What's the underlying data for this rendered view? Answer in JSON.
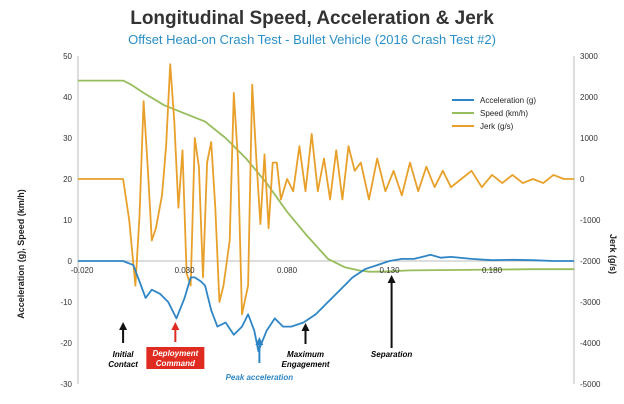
{
  "chart_data": {
    "type": "line",
    "title": "Longitudinal Speed, Acceleration & Jerk",
    "subtitle": "Offset Head-on Crash Test - Bullet Vehicle (2016 Crash Test #2)",
    "xlabel": "",
    "ylabel_left": "Acceleration (g), Speed (km/h)",
    "ylabel_right": "Jerk (g/s)",
    "xlim": [
      -0.022,
      0.22
    ],
    "ylim_left": [
      -30,
      50
    ],
    "ylim_right": [
      -5000,
      3000
    ],
    "x_ticks": [
      "-0.020",
      "0.030",
      "0.080",
      "0.130",
      "0.180"
    ],
    "y_ticks_left": [
      "50",
      "40",
      "30",
      "20",
      "10",
      "0",
      "-10",
      "-20",
      "-30"
    ],
    "y_ticks_right": [
      "3000",
      "2000",
      "1000",
      "0",
      "-1000",
      "-2000",
      "-3000",
      "-4000",
      "-5000"
    ],
    "legend_position": "top-right",
    "colors": {
      "acceleration": "#2f86c6",
      "speed": "#97bd5c",
      "jerk": "#e8a02a"
    },
    "series": [
      {
        "name": "Acceleration (g)",
        "axis": "left",
        "x": [
          -0.022,
          0.0,
          0.005,
          0.008,
          0.011,
          0.014,
          0.018,
          0.022,
          0.026,
          0.03,
          0.033,
          0.035,
          0.038,
          0.04,
          0.043,
          0.046,
          0.05,
          0.054,
          0.058,
          0.061,
          0.064,
          0.066,
          0.07,
          0.074,
          0.078,
          0.082,
          0.088,
          0.094,
          0.1,
          0.106,
          0.112,
          0.118,
          0.124,
          0.13,
          0.136,
          0.142,
          0.146,
          0.15,
          0.155,
          0.16,
          0.17,
          0.18,
          0.19,
          0.2,
          0.21,
          0.22
        ],
        "values": [
          0,
          0,
          -1,
          -5,
          -9,
          -7,
          -8,
          -10,
          -14,
          -9,
          -4,
          -4,
          -5,
          -6,
          -12,
          -16,
          -15,
          -18,
          -16,
          -13,
          -17,
          -22,
          -17,
          -14,
          -16,
          -16,
          -15,
          -13,
          -10,
          -7,
          -4,
          -2,
          -1,
          0,
          0.5,
          0.5,
          1,
          1.5,
          0.8,
          1,
          0.5,
          0.2,
          0.3,
          0.2,
          0,
          0
        ]
      },
      {
        "name": "Speed (km/h)",
        "axis": "left",
        "x": [
          -0.022,
          0.0,
          0.004,
          0.01,
          0.02,
          0.03,
          0.04,
          0.05,
          0.06,
          0.07,
          0.08,
          0.09,
          0.1,
          0.108,
          0.115,
          0.12,
          0.126,
          0.13,
          0.14,
          0.16,
          0.18,
          0.2,
          0.22
        ],
        "values": [
          44,
          44,
          43,
          41,
          38,
          36,
          34,
          30,
          25,
          19,
          12,
          6,
          0.5,
          -1.5,
          -2.3,
          -2.6,
          -2.6,
          -2.5,
          -2.3,
          -2.2,
          -2.1,
          -2.0,
          -2.0
        ]
      },
      {
        "name": "Jerk (g/s)",
        "axis": "right",
        "x": [
          -0.022,
          -0.01,
          0.0,
          0.003,
          0.006,
          0.008,
          0.01,
          0.012,
          0.014,
          0.016,
          0.019,
          0.021,
          0.023,
          0.025,
          0.027,
          0.029,
          0.031,
          0.033,
          0.035,
          0.037,
          0.039,
          0.041,
          0.043,
          0.045,
          0.047,
          0.049,
          0.052,
          0.054,
          0.056,
          0.058,
          0.061,
          0.063,
          0.065,
          0.067,
          0.069,
          0.071,
          0.073,
          0.075,
          0.077,
          0.08,
          0.083,
          0.086,
          0.089,
          0.092,
          0.095,
          0.098,
          0.101,
          0.104,
          0.107,
          0.11,
          0.113,
          0.116,
          0.12,
          0.124,
          0.128,
          0.132,
          0.136,
          0.14,
          0.144,
          0.148,
          0.152,
          0.156,
          0.16,
          0.165,
          0.17,
          0.175,
          0.18,
          0.185,
          0.19,
          0.195,
          0.2,
          0.205,
          0.21,
          0.215,
          0.22
        ],
        "values": [
          0,
          0,
          0,
          -1000,
          -2600,
          -900,
          1900,
          300,
          -1500,
          -1200,
          -400,
          800,
          2800,
          1400,
          -700,
          700,
          -2300,
          -2600,
          1000,
          300,
          -2400,
          400,
          900,
          -700,
          -3000,
          -2600,
          -1500,
          2100,
          500,
          -3300,
          -2600,
          2300,
          500,
          -1100,
          600,
          -1200,
          400,
          400,
          -500,
          0,
          -300,
          800,
          -300,
          1100,
          -300,
          500,
          -500,
          700,
          -500,
          800,
          200,
          400,
          -500,
          500,
          -300,
          200,
          -400,
          400,
          -300,
          300,
          -200,
          200,
          -200,
          0,
          200,
          -200,
          100,
          -100,
          100,
          -100,
          0,
          -100,
          100,
          0,
          0
        ]
      }
    ],
    "annotations": [
      {
        "text": [
          "Initial",
          "Contact"
        ],
        "x": 0.0,
        "color": "#000000",
        "arrow": "black"
      },
      {
        "text": [
          "Deployment",
          "Command"
        ],
        "x": 0.0255,
        "color": "#ffffff",
        "arrow": "red",
        "box": "#e02b20"
      },
      {
        "text": [
          "Peak acceleration"
        ],
        "x": 0.0665,
        "color": "#2f86c6",
        "arrow": "blue"
      },
      {
        "text": [
          "Maximum",
          "Engagement"
        ],
        "x": 0.089,
        "color": "#000000",
        "arrow": "black"
      },
      {
        "text": [
          "Separation"
        ],
        "x": 0.131,
        "color": "#000000",
        "arrow": "black"
      }
    ]
  }
}
